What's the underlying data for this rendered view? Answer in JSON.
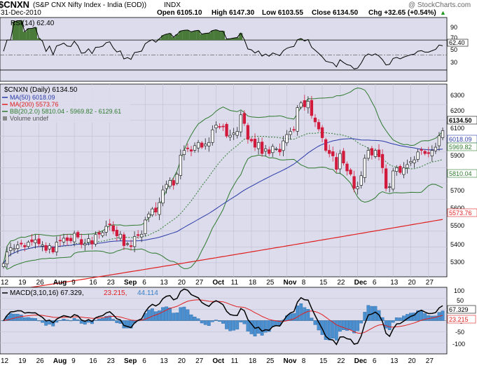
{
  "header": {
    "symbol": "$CNXN",
    "name": "(S&P CNX Nifty Index - India (EOD))",
    "exchange": "INDX",
    "watermark": "@ StockCharts.com",
    "date": "31-Dec-2010",
    "open": "Open 6105.10",
    "high": "High 6147.30",
    "low": "Low 6103.55",
    "close": "Close 6134.50",
    "change": "Chg +32.65 (+0.54%)",
    "change_arrow": "▲"
  },
  "rsi_panel": {
    "label": "RSI(14) 62.40",
    "ticks": [
      "90",
      "70",
      "50",
      "30"
    ],
    "value_tag": "62.40"
  },
  "price_panel": {
    "label": "$CNXN (Daily) 6134.50",
    "legend": [
      {
        "text": "MA(50) 6018.09",
        "color": "#2a3aa8"
      },
      {
        "text": "MA(200) 5573.76",
        "color": "#e02020"
      },
      {
        "text": "BB(20,2.0) 5810.04 - 5969.82 - 6129.61",
        "color": "#2f7a2f"
      },
      {
        "text": "Volume undef",
        "color": "#555555"
      }
    ],
    "ticks": [
      "6300",
      "6200",
      "6100",
      "6000",
      "5900",
      "5800",
      "5700",
      "5600",
      "5500",
      "5400",
      "5300"
    ],
    "value_tags": [
      "6134.50",
      "6018.09",
      "5969.82",
      "5810.04",
      "5573.76"
    ]
  },
  "macd_panel": {
    "label_main": "MACD(3,10,16) 67.329,",
    "label_signal": "23.215,",
    "label_hist": "44.114",
    "ticks": [
      "100",
      "50",
      "0",
      "-50",
      "-100"
    ],
    "value_tags": [
      "67.329",
      "23.215"
    ]
  },
  "date_axis": {
    "labels": [
      "12",
      "19",
      "26",
      "Aug",
      "9",
      "16",
      "23",
      "Sep",
      "6",
      "13",
      "20",
      "27",
      "Oct",
      "11",
      "18",
      "25",
      "Nov",
      "8",
      "15",
      "22",
      "Dec",
      "6",
      "13",
      "20",
      "27"
    ]
  },
  "colors": {
    "panel_bg": "#dcdcec",
    "grid": "#c3c3d7",
    "up": "#222222",
    "down": "#d11a3c",
    "ma50": "#2a3aa8",
    "ma200": "#e02020",
    "bb": "#2f7a2f",
    "macd_hist": "#4a8fd0",
    "rsi_fill": "#4a7a3a"
  },
  "chart_data": {
    "type": "candlestick",
    "title": "$CNXN (S&P CNX Nifty Index - India (EOD)) INDX",
    "price_ylim": [
      5220,
      6420
    ],
    "rsi_ylim": [
      15,
      100
    ],
    "macd_ylim": [
      -150,
      150
    ],
    "x": [
      "2010-07-12",
      "2010-07-13",
      "2010-07-14",
      "2010-07-15",
      "2010-07-16",
      "2010-07-19",
      "2010-07-20",
      "2010-07-21",
      "2010-07-22",
      "2010-07-23",
      "2010-07-26",
      "2010-07-27",
      "2010-07-28",
      "2010-07-29",
      "2010-07-30",
      "2010-08-02",
      "2010-08-03",
      "2010-08-04",
      "2010-08-05",
      "2010-08-06",
      "2010-08-09",
      "2010-08-10",
      "2010-08-11",
      "2010-08-12",
      "2010-08-13",
      "2010-08-16",
      "2010-08-17",
      "2010-08-18",
      "2010-08-19",
      "2010-08-20",
      "2010-08-23",
      "2010-08-24",
      "2010-08-25",
      "2010-08-26",
      "2010-08-27",
      "2010-08-30",
      "2010-08-31",
      "2010-09-01",
      "2010-09-02",
      "2010-09-03",
      "2010-09-06",
      "2010-09-07",
      "2010-09-08",
      "2010-09-09",
      "2010-09-10",
      "2010-09-13",
      "2010-09-14",
      "2010-09-15",
      "2010-09-16",
      "2010-09-17",
      "2010-09-20",
      "2010-09-21",
      "2010-09-22",
      "2010-09-23",
      "2010-09-24",
      "2010-09-27",
      "2010-09-28",
      "2010-09-29",
      "2010-09-30",
      "2010-10-01",
      "2010-10-04",
      "2010-10-05",
      "2010-10-06",
      "2010-10-07",
      "2010-10-08",
      "2010-10-11",
      "2010-10-12",
      "2010-10-13",
      "2010-10-14",
      "2010-10-15",
      "2010-10-18",
      "2010-10-19",
      "2010-10-20",
      "2010-10-21",
      "2010-10-22",
      "2010-10-25",
      "2010-10-26",
      "2010-10-27",
      "2010-10-28",
      "2010-10-29",
      "2010-11-01",
      "2010-11-02",
      "2010-11-03",
      "2010-11-04",
      "2010-11-05",
      "2010-11-08",
      "2010-11-09",
      "2010-11-10",
      "2010-11-11",
      "2010-11-12",
      "2010-11-15",
      "2010-11-16",
      "2010-11-17",
      "2010-11-18",
      "2010-11-19",
      "2010-11-22",
      "2010-11-23",
      "2010-11-24",
      "2010-11-25",
      "2010-11-26",
      "2010-11-29",
      "2010-11-30",
      "2010-12-01",
      "2010-12-02",
      "2010-12-03",
      "2010-12-06",
      "2010-12-07",
      "2010-12-08",
      "2010-12-09",
      "2010-12-10",
      "2010-12-13",
      "2010-12-14",
      "2010-12-15",
      "2010-12-16",
      "2010-12-17",
      "2010-12-20",
      "2010-12-21",
      "2010-12-22",
      "2010-12-23",
      "2010-12-24",
      "2010-12-27",
      "2010-12-28",
      "2010-12-29",
      "2010-12-30",
      "2010-12-31"
    ],
    "close": [
      5295,
      5368,
      5395,
      5390,
      5412,
      5418,
      5400,
      5430,
      5432,
      5445,
      5420,
      5412,
      5378,
      5408,
      5368,
      5430,
      5440,
      5455,
      5440,
      5438,
      5486,
      5462,
      5415,
      5420,
      5452,
      5418,
      5478,
      5480,
      5490,
      5530,
      5540,
      5500,
      5470,
      5480,
      5408,
      5420,
      5402,
      5466,
      5472,
      5480,
      5570,
      5608,
      5640,
      5620,
      5680,
      5760,
      5795,
      5820,
      5790,
      5860,
      5980,
      6010,
      6020,
      6005,
      6040,
      6060,
      6030,
      6050,
      6060,
      6140,
      6170,
      6160,
      6160,
      6100,
      6105,
      6120,
      6130,
      6235,
      6180,
      6080,
      6070,
      6030,
      6060,
      5990,
      6020,
      5990,
      6035,
      6020,
      6000,
      6070,
      6110,
      6130,
      6140,
      6280,
      6310,
      6285,
      6320,
      6230,
      6190,
      6145,
      6090,
      6010,
      5990,
      5975,
      5890,
      5990,
      5930,
      5880,
      5860,
      5770,
      5780,
      5850,
      5960,
      6010,
      5980,
      6010,
      5970,
      5900,
      5770,
      5780,
      5880,
      5900,
      5870,
      5900,
      5920,
      5940,
      5950,
      6000,
      6010,
      5990,
      5990,
      6010,
      6030,
      6101.85,
      6134.5
    ],
    "ma50_last": 6018.09,
    "ma200_last": 5573.76,
    "bb_upper_last": 6129.61,
    "bb_mid_last": 5969.82,
    "bb_lower_last": 5810.04,
    "rsi_last": 62.4,
    "macd_last": 67.329,
    "macd_signal_last": 23.215,
    "macd_hist_last": 44.114
  }
}
